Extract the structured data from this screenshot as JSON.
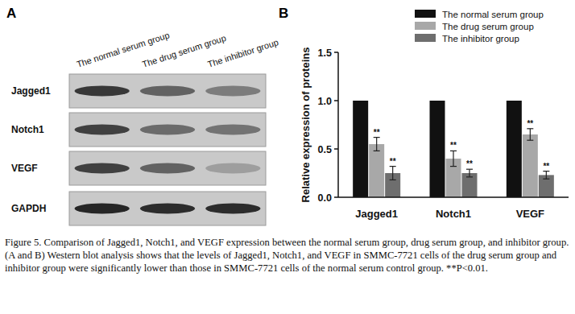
{
  "panel_labels": {
    "a": "A",
    "b": "B"
  },
  "blot": {
    "columns": [
      "The normal serum group",
      "The drug serum group",
      "The inhibitor group"
    ],
    "rows": [
      "Jagged1",
      "Notch1",
      "VEGF",
      "GAPDH"
    ]
  },
  "chart_data": {
    "type": "bar",
    "y_label": "Relative expression of proteins",
    "categories": [
      "Jagged1",
      "Notch1",
      "VEGF"
    ],
    "series": [
      {
        "name": "The normal serum group",
        "color": "#111111",
        "values": [
          1.0,
          1.0,
          1.0
        ]
      },
      {
        "name": "The drug serum group",
        "color": "#a8a8a8",
        "values": [
          0.55,
          0.4,
          0.65
        ],
        "errors": [
          0.07,
          0.08,
          0.06
        ],
        "significance": "**"
      },
      {
        "name": "The inhibitor group",
        "color": "#6e6e6e",
        "values": [
          0.25,
          0.25,
          0.23
        ],
        "errors": [
          0.07,
          0.04,
          0.04
        ],
        "significance": "**"
      }
    ],
    "ylim": [
      0,
      1.5
    ],
    "yticks": [
      {
        "value": 0,
        "label": "0.0"
      },
      {
        "value": 0.5,
        "label": "0.5"
      },
      {
        "value": 1.0,
        "label": "1.0"
      },
      {
        "value": 1.5,
        "label": "1.5"
      }
    ],
    "grid": false,
    "legend": "top-right"
  },
  "caption": "Figure 5. Comparison of Jagged1, Notch1, and VEGF expression between the normal serum group, drug serum group, and inhibitor group. (A and B) Western blot analysis shows that the levels of Jagged1, Notch1, and VEGF in SMMC-7721 cells of the drug serum group and inhibitor group were significantly lower than those in SMMC-7721 cells of the normal serum control group. **P<0.01."
}
